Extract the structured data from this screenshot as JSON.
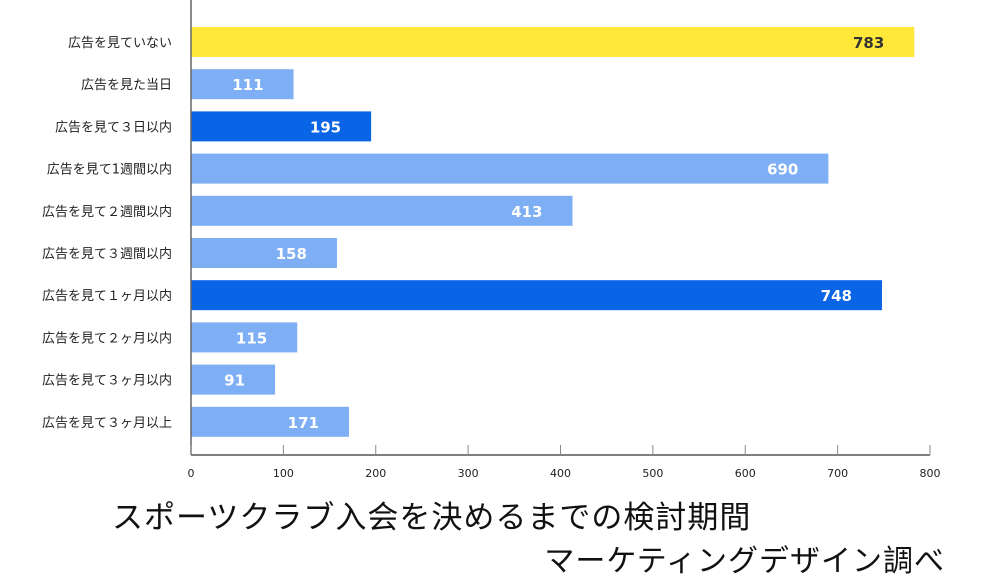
{
  "chart_data": {
    "type": "bar",
    "orientation": "horizontal",
    "title": "スポーツクラブ入会を決めるまでの検討期間",
    "subtitle": "マーケティングデザイン調べ",
    "categories": [
      "広告を見ていない",
      "広告を見た当日",
      "広告を見て３日以内",
      "広告を見て1週間以内",
      "広告を見て２週間以内",
      "広告を見て３週間以内",
      "広告を見て１ヶ月以内",
      "広告を見て２ヶ月以内",
      "広告を見て３ヶ月以内",
      "広告を見て３ヶ月以上"
    ],
    "values": [
      783,
      111,
      195,
      690,
      413,
      158,
      748,
      115,
      91,
      171
    ],
    "bar_colors": [
      "#FFE83A",
      "#7EAEF4",
      "#0A64E6",
      "#7EAEF4",
      "#7EAEF4",
      "#7EAEF4",
      "#0A64E6",
      "#7EAEF4",
      "#7EAEF4",
      "#7EAEF4"
    ],
    "label_colors": [
      "#333333",
      "#ffffff",
      "#ffffff",
      "#ffffff",
      "#ffffff",
      "#ffffff",
      "#ffffff",
      "#ffffff",
      "#ffffff",
      "#ffffff"
    ],
    "xlim": [
      0,
      800
    ],
    "xticks": [
      "0",
      "100",
      "200",
      "300",
      "400",
      "500",
      "600",
      "700",
      "800"
    ],
    "xlabel": "",
    "ylabel": "",
    "grid": false,
    "data_labels": true
  }
}
